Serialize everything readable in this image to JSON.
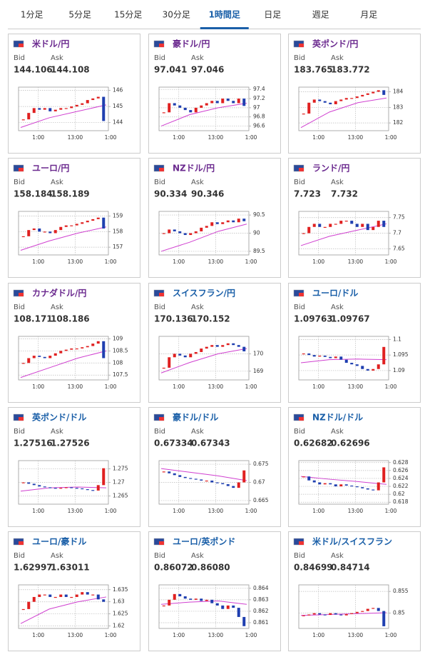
{
  "tabs": [
    "1分足",
    "5分足",
    "15分足",
    "30分足",
    "1時間足",
    "日足",
    "週足",
    "月足"
  ],
  "active_tab": 4,
  "bid_label": "Bid",
  "ask_label": "Ask",
  "time_labels": [
    "1:00",
    "13:00",
    "1:00"
  ],
  "cards": [
    {
      "name": "米ドル/円",
      "color": "#6b2a8f",
      "bid": "144.106",
      "ask": "144.108",
      "chart": {
        "type": "candlestick",
        "ylim": [
          143.5,
          146.2
        ],
        "yticks": [
          144,
          145,
          146
        ],
        "closes": [
          144.2,
          144.6,
          144.9,
          144.8,
          144.9,
          144.7,
          144.8,
          144.9,
          144.9,
          145.0,
          145.1,
          145.2,
          145.4,
          145.5,
          145.6,
          144.1
        ],
        "ma": [
          143.7,
          144.3,
          144.7,
          145.1
        ]
      }
    },
    {
      "name": "豪ドル/円",
      "color": "#6b2a8f",
      "bid": "97.041",
      "ask": "97.046",
      "chart": {
        "type": "candlestick",
        "ylim": [
          96.5,
          97.45
        ],
        "yticks": [
          96.6,
          96.8,
          97,
          97.2,
          97.4
        ],
        "closes": [
          96.9,
          97.1,
          97.05,
          97.0,
          96.95,
          96.9,
          97.0,
          97.05,
          97.1,
          97.15,
          97.1,
          97.2,
          97.15,
          97.1,
          97.2,
          97.04
        ],
        "ma": [
          96.6,
          96.85,
          97.0,
          97.1
        ]
      }
    },
    {
      "name": "英ポンド/円",
      "color": "#6b2a8f",
      "bid": "183.765",
      "ask": "183.772",
      "chart": {
        "type": "candlestick",
        "ylim": [
          181.5,
          184.3
        ],
        "yticks": [
          182,
          183,
          184
        ],
        "closes": [
          182.6,
          183.3,
          183.5,
          183.4,
          183.3,
          183.2,
          183.4,
          183.5,
          183.6,
          183.6,
          183.7,
          183.8,
          183.9,
          184.0,
          184.1,
          183.8
        ],
        "ma": [
          181.7,
          182.7,
          183.3,
          183.6
        ]
      }
    },
    {
      "name": "ユーロ/円",
      "color": "#6b2a8f",
      "bid": "158.184",
      "ask": "158.189",
      "chart": {
        "type": "candlestick",
        "ylim": [
          156.5,
          159.3
        ],
        "yticks": [
          157,
          158,
          159
        ],
        "closes": [
          157.7,
          158.1,
          158.2,
          158.0,
          158.0,
          157.9,
          158.1,
          158.3,
          158.4,
          158.4,
          158.5,
          158.6,
          158.7,
          158.8,
          158.9,
          158.2
        ],
        "ma": [
          156.8,
          157.4,
          157.9,
          158.3
        ]
      }
    },
    {
      "name": "NZドル/円",
      "color": "#6b2a8f",
      "bid": "90.334",
      "ask": "90.346",
      "chart": {
        "type": "candlestick",
        "ylim": [
          89.4,
          90.6
        ],
        "yticks": [
          89.5,
          90,
          90.5
        ],
        "closes": [
          90.0,
          90.1,
          90.05,
          90.0,
          89.95,
          90.0,
          90.05,
          90.15,
          90.2,
          90.3,
          90.25,
          90.3,
          90.35,
          90.3,
          90.4,
          90.33
        ],
        "ma": [
          89.5,
          89.75,
          90.05,
          90.25
        ]
      }
    },
    {
      "name": "ランド/円",
      "color": "#6b2a8f",
      "bid": "7.723",
      "ask": "7.732",
      "chart": {
        "type": "candlestick",
        "ylim": [
          7.63,
          7.77
        ],
        "yticks": [
          7.65,
          7.7,
          7.75
        ],
        "closes": [
          7.7,
          7.72,
          7.73,
          7.72,
          7.72,
          7.73,
          7.73,
          7.74,
          7.74,
          7.73,
          7.72,
          7.73,
          7.71,
          7.72,
          7.74,
          7.72
        ],
        "ma": [
          7.66,
          7.69,
          7.71,
          7.73
        ]
      }
    },
    {
      "name": "カナダドル/円",
      "color": "#6b2a8f",
      "bid": "108.171",
      "ask": "108.186",
      "chart": {
        "type": "candlestick",
        "ylim": [
          107.3,
          109.1
        ],
        "yticks": [
          107.5,
          108,
          108.5,
          109
        ],
        "closes": [
          108.0,
          108.2,
          108.3,
          108.25,
          108.2,
          108.3,
          108.4,
          108.5,
          108.55,
          108.6,
          108.6,
          108.65,
          108.7,
          108.8,
          108.9,
          108.2
        ],
        "ma": [
          107.4,
          107.8,
          108.2,
          108.5
        ]
      }
    },
    {
      "name": "スイスフラン/円",
      "color": "#1a5fa8",
      "bid": "170.136",
      "ask": "170.152",
      "chart": {
        "type": "candlestick",
        "ylim": [
          168.5,
          171.0
        ],
        "yticks": [
          169,
          170
        ],
        "closes": [
          169.2,
          169.8,
          170.0,
          169.9,
          169.8,
          170.0,
          170.1,
          170.3,
          170.4,
          170.5,
          170.4,
          170.5,
          170.6,
          170.5,
          170.4,
          170.14
        ],
        "ma": [
          168.9,
          169.5,
          170.0,
          170.3
        ]
      }
    },
    {
      "name": "ユーロ/ドル",
      "color": "#1a5fa8",
      "bid": "1.09763",
      "ask": "1.09767",
      "chart": {
        "type": "candlestick",
        "ylim": [
          1.087,
          1.101
        ],
        "yticks": [
          1.09,
          1.095,
          1.1
        ],
        "closes": [
          1.0955,
          1.095,
          1.0945,
          1.0948,
          1.0944,
          1.094,
          1.0945,
          1.0935,
          1.0925,
          1.092,
          1.0915,
          1.0905,
          1.09,
          1.0905,
          1.092,
          1.0976
        ],
        "ma": [
          1.0925,
          1.0935,
          1.0937,
          1.0935
        ]
      }
    },
    {
      "name": "英ポンド/ドル",
      "color": "#1a5fa8",
      "bid": "1.27516",
      "ask": "1.27526",
      "chart": {
        "type": "candlestick",
        "ylim": [
          1.262,
          1.278
        ],
        "yticks": [
          1.265,
          1.27,
          1.275
        ],
        "closes": [
          1.27,
          1.2695,
          1.269,
          1.2685,
          1.2682,
          1.268,
          1.2678,
          1.268,
          1.2682,
          1.268,
          1.2678,
          1.2675,
          1.2672,
          1.267,
          1.269,
          1.2752
        ],
        "ma": [
          1.2668,
          1.268,
          1.2683,
          1.268
        ]
      }
    },
    {
      "name": "豪ドル/ドル",
      "color": "#1a5fa8",
      "bid": "0.67334",
      "ask": "0.67343",
      "chart": {
        "type": "candlestick",
        "ylim": [
          0.664,
          0.676
        ],
        "yticks": [
          0.665,
          0.67,
          0.675
        ],
        "closes": [
          0.673,
          0.6725,
          0.672,
          0.6715,
          0.6712,
          0.671,
          0.6708,
          0.6705,
          0.6705,
          0.67,
          0.6698,
          0.6695,
          0.669,
          0.6685,
          0.67,
          0.6733
        ],
        "ma": [
          0.6738,
          0.6728,
          0.6718,
          0.6705
        ]
      }
    },
    {
      "name": "NZドル/ドル",
      "color": "#1a5fa8",
      "bid": "0.62682",
      "ask": "0.62696",
      "chart": {
        "type": "candlestick",
        "ylim": [
          0.6175,
          0.6285
        ],
        "yticks": [
          0.618,
          0.62,
          0.622,
          0.624,
          0.626,
          0.628
        ],
        "closes": [
          0.6245,
          0.6235,
          0.623,
          0.6225,
          0.6228,
          0.6225,
          0.622,
          0.6225,
          0.6222,
          0.622,
          0.6218,
          0.6215,
          0.6212,
          0.621,
          0.623,
          0.6268
        ],
        "ma": [
          0.6245,
          0.6238,
          0.6232,
          0.6225
        ]
      }
    },
    {
      "name": "ユーロ/豪ドル",
      "color": "#1a5fa8",
      "bid": "1.62997",
      "ask": "1.63011",
      "chart": {
        "type": "candlestick",
        "ylim": [
          1.619,
          1.637
        ],
        "yticks": [
          1.62,
          1.625,
          1.63,
          1.635
        ],
        "closes": [
          1.627,
          1.63,
          1.632,
          1.633,
          1.633,
          1.632,
          1.632,
          1.633,
          1.632,
          1.632,
          1.633,
          1.634,
          1.633,
          1.633,
          1.631,
          1.63
        ],
        "ma": [
          1.621,
          1.627,
          1.63,
          1.632
        ]
      }
    },
    {
      "name": "ユーロ/英ポンド",
      "color": "#1a5fa8",
      "bid": "0.86072",
      "ask": "0.86080",
      "chart": {
        "type": "candlestick",
        "ylim": [
          0.8605,
          0.8643
        ],
        "yticks": [
          0.861,
          0.862,
          0.863,
          0.864
        ],
        "closes": [
          0.8625,
          0.863,
          0.8635,
          0.8633,
          0.8631,
          0.863,
          0.8631,
          0.8629,
          0.863,
          0.8627,
          0.8625,
          0.8622,
          0.8625,
          0.8623,
          0.8615,
          0.8607
        ],
        "ma": [
          0.8626,
          0.8628,
          0.8629,
          0.8626
        ]
      }
    },
    {
      "name": "米ドル/スイスフラン",
      "color": "#1a5fa8",
      "bid": "0.84699",
      "ask": "0.84714",
      "chart": {
        "type": "candlestick",
        "ylim": [
          0.8465,
          0.8565
        ],
        "yticks": [
          0.85,
          0.855
        ],
        "closes": [
          0.8495,
          0.8497,
          0.85,
          0.8497,
          0.8496,
          0.85,
          0.8497,
          0.8495,
          0.8498,
          0.85,
          0.8503,
          0.8505,
          0.851,
          0.8512,
          0.8505,
          0.847
        ],
        "ma": [
          0.8495,
          0.8497,
          0.8499,
          0.8501
        ]
      }
    }
  ]
}
